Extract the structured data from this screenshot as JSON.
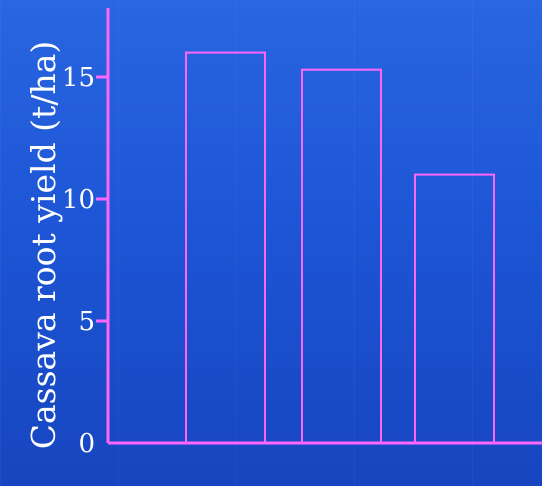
{
  "chart_data": {
    "type": "bar",
    "categories": [
      "",
      "",
      ""
    ],
    "values": [
      16,
      15.3,
      11
    ],
    "title": "",
    "xlabel": "",
    "ylabel": "Cassava root yield (t/ha)",
    "ylim": [
      0,
      18
    ],
    "yticks": [
      0,
      5,
      10,
      15
    ],
    "grid": false,
    "legend": "none"
  },
  "colors": {
    "bar_outline": "#ff66ff",
    "axis": "#ff66ff",
    "text": "#ffffff",
    "background": "#1f5ad9"
  }
}
